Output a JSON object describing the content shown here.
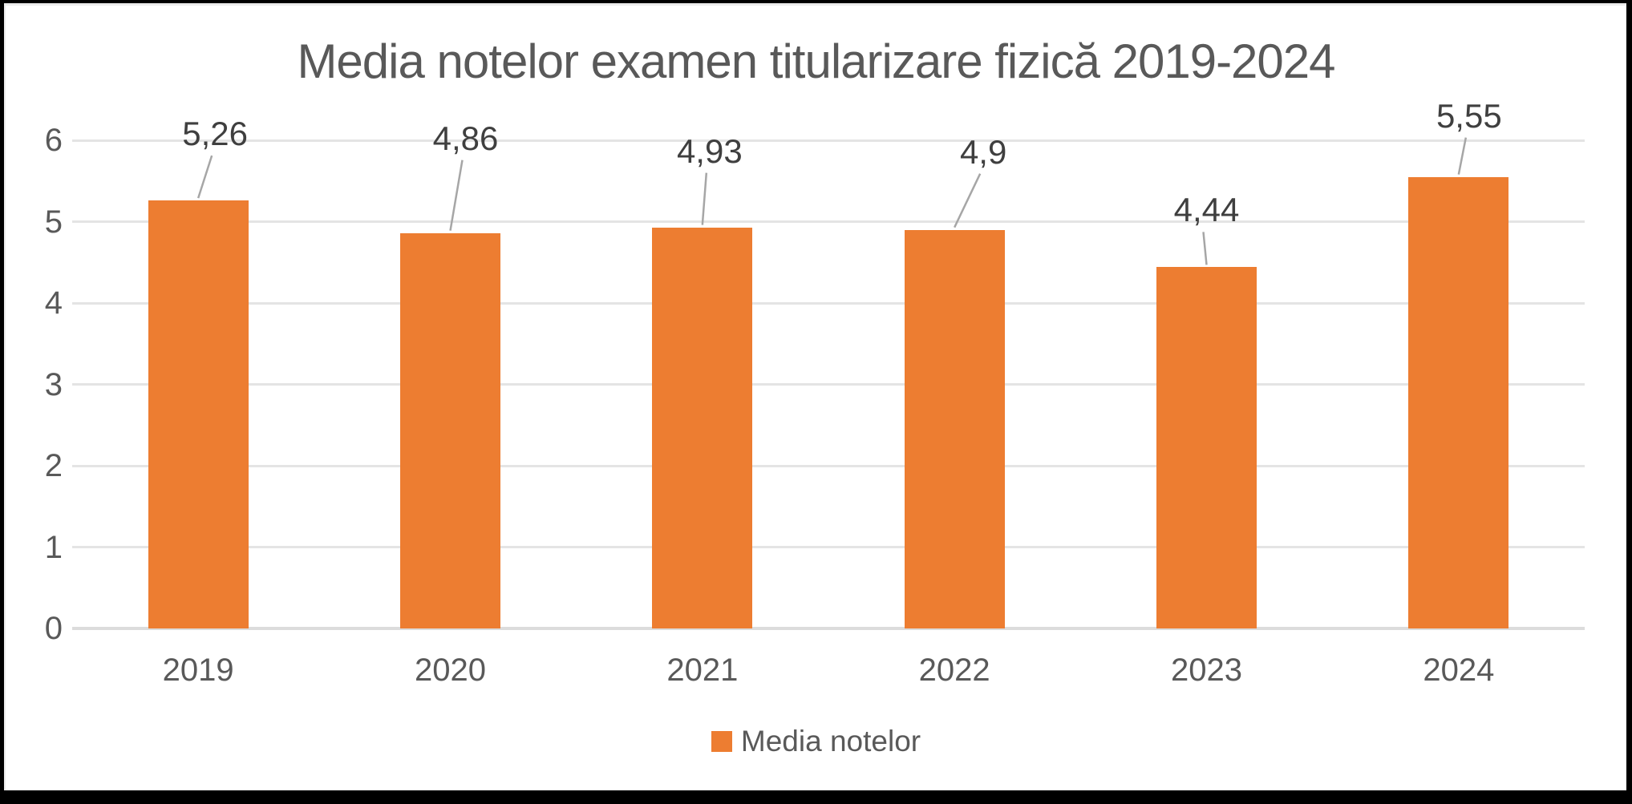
{
  "chart_data": {
    "type": "bar",
    "title": "Media notelor examen titularizare fizică 2019-2024",
    "categories": [
      "2019",
      "2020",
      "2021",
      "2022",
      "2023",
      "2024"
    ],
    "values": [
      5.26,
      4.86,
      4.93,
      4.9,
      4.44,
      5.55
    ],
    "data_labels": [
      "5,26",
      "4,86",
      "4,93",
      "4,9",
      "4,44",
      "5,55"
    ],
    "series": [
      {
        "name": "Media notelor",
        "values": [
          5.26,
          4.86,
          4.93,
          4.9,
          4.44,
          5.55
        ]
      }
    ],
    "xlabel": "",
    "ylabel": "",
    "ylim": [
      0,
      6
    ],
    "yticks": [
      0,
      1,
      2,
      3,
      4,
      5,
      6
    ],
    "grid": true,
    "legend_position": "bottom"
  },
  "legend": {
    "label": "Media notelor",
    "swatch_color": "#ED7D31"
  },
  "colors": {
    "bar": "#ED7D31",
    "gridline": "#E4E4E4",
    "axis_line": "#DCDCDC",
    "axis_text": "#595959",
    "title_text": "#595959",
    "data_label_text": "#3F3F3F",
    "leader_line": "#A6A6A6",
    "background": "#FFFFFF",
    "frame": "#000000"
  }
}
